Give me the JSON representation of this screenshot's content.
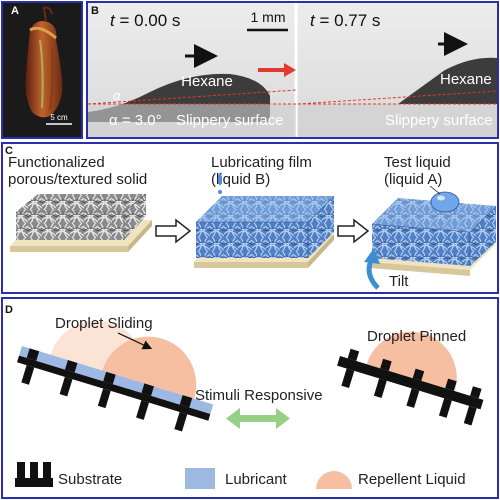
{
  "colors": {
    "frame": "#2b2fa8",
    "substrate": "#111111",
    "lubricant": "#9db8e3",
    "repellent": "#f6bfa2",
    "repellent_ghost": "#fbe3d6",
    "tilt_arrow": "#3d8fd1",
    "stimuli_arrow": "#97cf86",
    "red_arrow": "#e23b2e",
    "dashed": "#e0392b"
  },
  "panel_a": {
    "label": "A",
    "scale_bar": "5 cm"
  },
  "panel_b": {
    "label": "B",
    "time_left_prefix": "t",
    "time_left_value": " = 0.00 s",
    "time_right_prefix": "t",
    "time_right_value": " = 0.77 s",
    "scale_bar": "1 mm",
    "liquid_left": "Hexane",
    "liquid_right": "Hexane",
    "surface_left": "Slippery surface",
    "surface_right": "Slippery surface",
    "angle_symbol": "α",
    "angle_text": "α = 3.0°"
  },
  "panel_c": {
    "label": "C",
    "step1_line1": "Functionalized",
    "step1_line2": "porous/textured solid",
    "step2_line1": "Lubricating film",
    "step2_line2": "(liquid B)",
    "step3_line1": "Test liquid",
    "step3_line2": "(liquid A)",
    "tilt": "Tilt"
  },
  "panel_d": {
    "label": "D",
    "left_title": "Droplet Sliding",
    "right_title": "Droplet Pinned",
    "center": "Stimuli Responsive",
    "legend": {
      "substrate": "Substrate",
      "lubricant": "Lubricant",
      "repellent": "Repellent Liquid"
    }
  }
}
